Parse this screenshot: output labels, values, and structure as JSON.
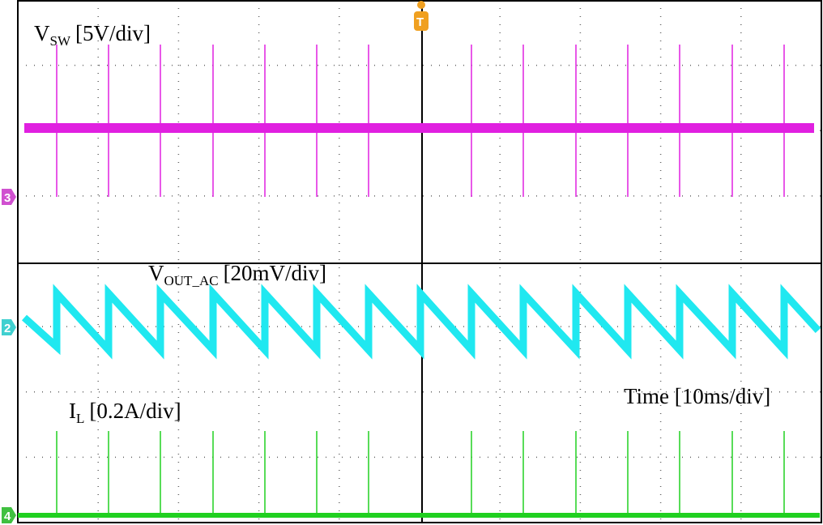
{
  "labels": {
    "vsw": {
      "main": "V",
      "sub": "SW",
      "scale": "[5V/div]"
    },
    "vout": {
      "main": "V",
      "sub": "OUT_AC",
      "scale": "[20mV/div]"
    },
    "il": {
      "main": "I",
      "sub": "L",
      "scale": "[0.2A/div]"
    },
    "time": "Time [10ms/div]"
  },
  "channels": {
    "ch3": "3",
    "ch2": "2",
    "ch4": "4"
  },
  "trigger": "T"
}
